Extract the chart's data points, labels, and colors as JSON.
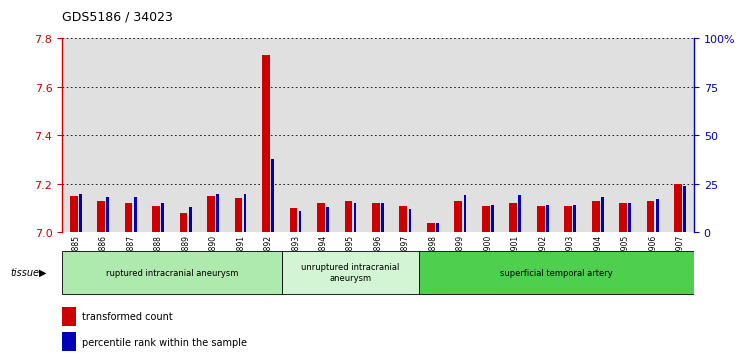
{
  "title": "GDS5186 / 34023",
  "samples": [
    "GSM1306885",
    "GSM1306886",
    "GSM1306887",
    "GSM1306888",
    "GSM1306889",
    "GSM1306890",
    "GSM1306891",
    "GSM1306892",
    "GSM1306893",
    "GSM1306894",
    "GSM1306895",
    "GSM1306896",
    "GSM1306897",
    "GSM1306898",
    "GSM1306899",
    "GSM1306900",
    "GSM1306901",
    "GSM1306902",
    "GSM1306903",
    "GSM1306904",
    "GSM1306905",
    "GSM1306906",
    "GSM1306907"
  ],
  "red_values": [
    7.15,
    7.13,
    7.12,
    7.11,
    7.08,
    7.15,
    7.14,
    7.73,
    7.1,
    7.12,
    7.13,
    7.12,
    7.11,
    7.04,
    7.13,
    7.11,
    7.12,
    7.11,
    7.11,
    7.13,
    7.12,
    7.13,
    7.2
  ],
  "blue_values": [
    20,
    18,
    18,
    15,
    13,
    20,
    20,
    38,
    11,
    13,
    15,
    15,
    12,
    5,
    19,
    14,
    19,
    14,
    14,
    18,
    15,
    17,
    24
  ],
  "groups": [
    {
      "label": "ruptured intracranial aneurysm",
      "start": 0,
      "end": 8,
      "color": "#aeeaae"
    },
    {
      "label": "unruptured intracranial\naneurysm",
      "start": 8,
      "end": 13,
      "color": "#d4f5d4"
    },
    {
      "label": "superficial temporal artery",
      "start": 13,
      "end": 23,
      "color": "#4ecf4e"
    }
  ],
  "ylim_left": [
    7.0,
    7.8
  ],
  "ylim_right": [
    0,
    100
  ],
  "yticks_left": [
    7.0,
    7.2,
    7.4,
    7.6,
    7.8
  ],
  "yticks_right": [
    0,
    25,
    50,
    75,
    100
  ],
  "ytick_labels_right": [
    "0",
    "25",
    "50",
    "75",
    "100%"
  ],
  "red_color": "#cc0000",
  "blue_color": "#0000bb",
  "bar_bg_color": "#e0e0e0",
  "grid_color": "#000000",
  "left_axis_color": "#cc0000",
  "right_axis_color": "#0000bb",
  "fig_bg": "#ffffff"
}
